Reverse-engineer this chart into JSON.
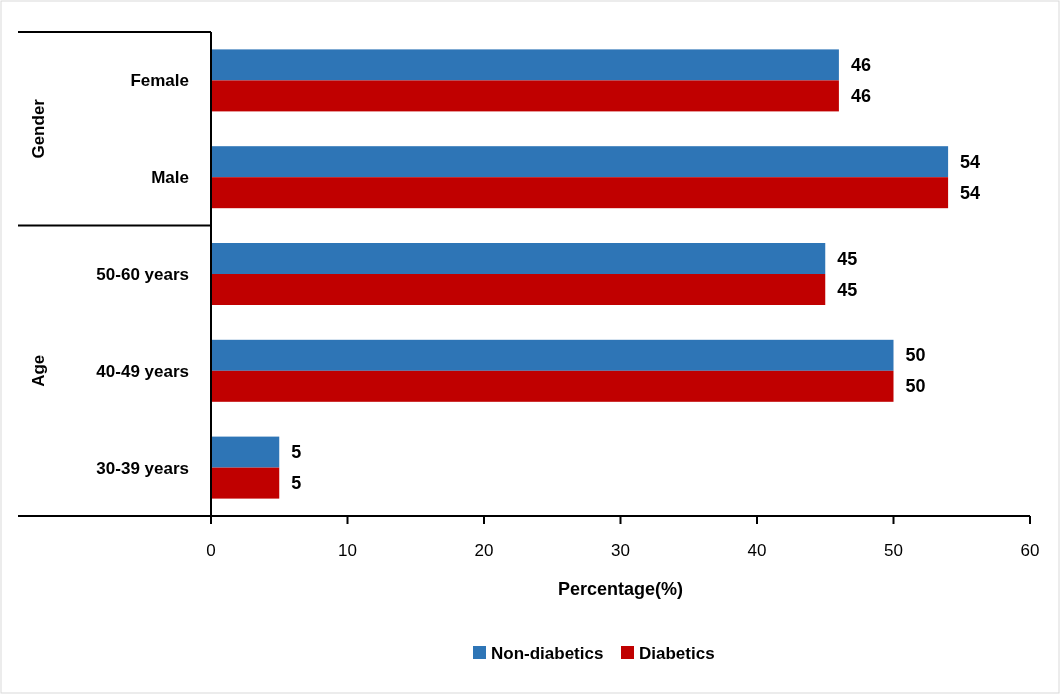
{
  "chart_data": {
    "type": "bar",
    "orientation": "horizontal",
    "xlabel": "Percentage(%)",
    "categories": [
      "Female",
      "Male",
      "50-60 years",
      "40-49 years",
      "30-39 years"
    ],
    "series": [
      {
        "name": "Non-diabetics",
        "color": "#2e75b6",
        "values": [
          46,
          54,
          45,
          50,
          5
        ]
      },
      {
        "name": "Diabetics",
        "color": "#c00000",
        "values": [
          46,
          54,
          45,
          50,
          5
        ]
      }
    ],
    "xlim": [
      0,
      60
    ],
    "xticks": [
      0,
      10,
      20,
      30,
      40,
      50,
      60
    ],
    "grid": false,
    "legend": "bottom",
    "data_labels": true,
    "annotations": [
      "Gender",
      "Age"
    ]
  }
}
